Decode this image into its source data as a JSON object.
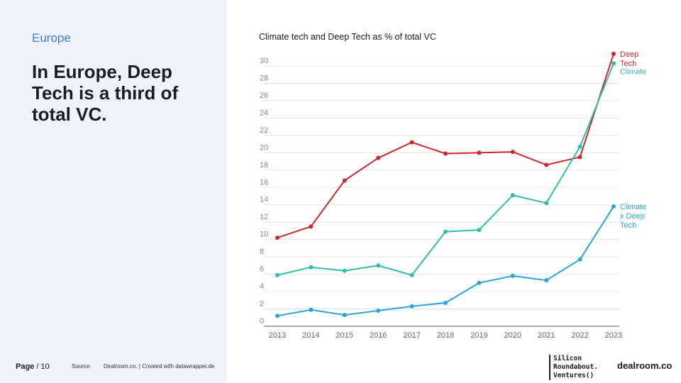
{
  "sidebar": {
    "section": "Europe",
    "headline": "In Europe, Deep Tech is a third of total VC."
  },
  "footer": {
    "page_label": "Page",
    "page_number": "10",
    "source_label": "Source:",
    "source_text": "Dealroom.co. | Created with datawrapper.de",
    "logo_sr": [
      "Silicon",
      "Roundabout.",
      "Ventures()"
    ],
    "logo_dealroom": "dealroom.co"
  },
  "colors": {
    "panel_bg": "#f1f3f9",
    "accent": "#3b7de0",
    "deep_tech": "#c9282d",
    "climate": "#2ebfa5",
    "climate_deep_tech": "#2aa6d6"
  },
  "chart_data": {
    "type": "line",
    "title": "Climate tech and Deep Tech as % of total VC",
    "xlabel": "",
    "ylabel": "",
    "x": [
      2013,
      2014,
      2015,
      2016,
      2017,
      2018,
      2019,
      2020,
      2021,
      2022,
      2023
    ],
    "ylim": [
      0,
      30
    ],
    "y_ticks": [
      0,
      2,
      4,
      6,
      8,
      10,
      12,
      14,
      16,
      18,
      20,
      22,
      24,
      26,
      28,
      30
    ],
    "grid": true,
    "series": [
      {
        "name": "Deep Tech",
        "label_lines": [
          "Deep",
          "Tech"
        ],
        "color": "#c9282d",
        "values": [
          10.2,
          11.5,
          16.8,
          19.4,
          21.2,
          19.9,
          20.0,
          20.1,
          18.6,
          19.5,
          31.4
        ]
      },
      {
        "name": "Climate",
        "label_lines": [
          "Climate"
        ],
        "color": "#2ebfa5",
        "values": [
          5.9,
          6.8,
          6.4,
          7.0,
          5.9,
          10.9,
          11.1,
          15.1,
          14.2,
          20.7,
          30.3
        ]
      },
      {
        "name": "Climate x Deep Tech",
        "label_lines": [
          "Climate",
          "x Deep",
          "Tech"
        ],
        "color": "#2aa6d6",
        "values": [
          1.2,
          1.9,
          1.3,
          1.8,
          2.3,
          2.7,
          5.0,
          5.8,
          5.3,
          7.7,
          13.8
        ]
      }
    ]
  }
}
